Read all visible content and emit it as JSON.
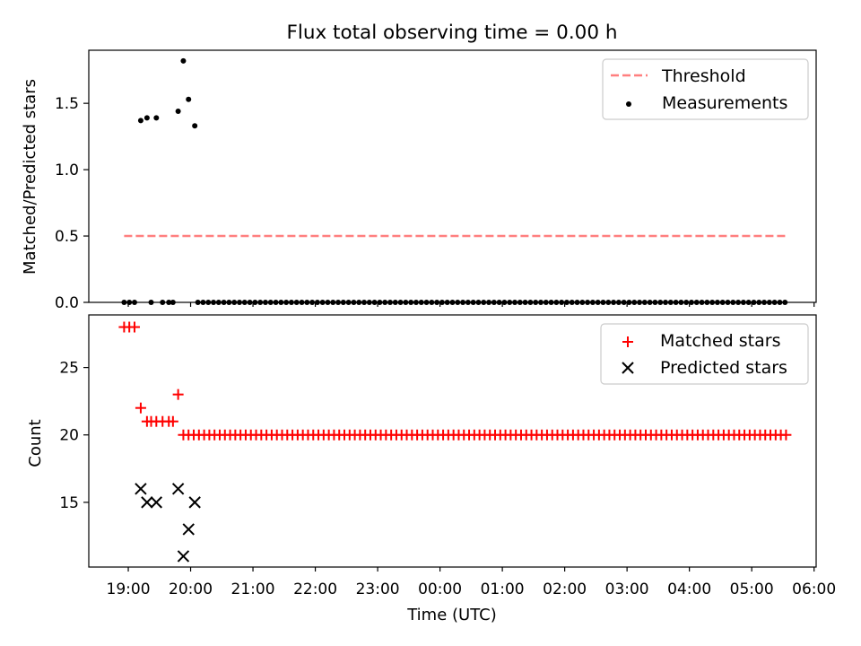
{
  "chart_data": [
    {
      "type": "scatter",
      "title": "Flux total observing time = 0.00 h",
      "ylabel": "Matched/Predicted stars",
      "xlabel": "",
      "ylim": [
        0,
        1.9
      ],
      "yticks": [
        "0.0",
        "0.5",
        "1.0",
        "1.5"
      ],
      "grid": false,
      "legend_position": "top-right",
      "threshold": {
        "name": "Threshold",
        "value": 0.5,
        "x_start": "18:56",
        "x_end": "05:35",
        "color": "#ff7f7f",
        "style": "dashed"
      },
      "series": [
        {
          "name": "Measurements",
          "color": "#000000",
          "marker": "dot",
          "points": [
            [
              "18:56",
              0
            ],
            [
              "19:01",
              0
            ],
            [
              "19:06",
              0
            ],
            [
              "19:12",
              1.37
            ],
            [
              "19:18",
              1.39
            ],
            [
              "19:22",
              0
            ],
            [
              "19:27",
              1.39
            ],
            [
              "19:33",
              0
            ],
            [
              "19:39",
              0
            ],
            [
              "19:43",
              0
            ],
            [
              "19:48",
              1.44
            ],
            [
              "19:53",
              1.82
            ],
            [
              "19:58",
              1.53
            ],
            [
              "20:04",
              1.33
            ],
            {
              "from": "20:07",
              "to": "05:35",
              "step_min": 5,
              "value": 0
            }
          ]
        }
      ]
    },
    {
      "type": "scatter",
      "title": "",
      "ylabel": "Count",
      "xlabel": "Time (UTC)",
      "ylim": [
        10.2,
        28.9
      ],
      "yticks": [
        "15",
        "20",
        "25"
      ],
      "x_range": [
        "18:22",
        "06:02"
      ],
      "xticks": [
        "19:00",
        "20:00",
        "21:00",
        "22:00",
        "23:00",
        "00:00",
        "01:00",
        "02:00",
        "03:00",
        "04:00",
        "05:00",
        "06:00"
      ],
      "grid": false,
      "legend_position": "top-right",
      "series": [
        {
          "name": "Matched stars",
          "color": "#ff0000",
          "marker": "plus",
          "points": [
            [
              "18:56",
              28
            ],
            [
              "19:01",
              28
            ],
            [
              "19:06",
              28
            ],
            [
              "19:12",
              22
            ],
            [
              "19:18",
              21
            ],
            [
              "19:22",
              21
            ],
            [
              "19:27",
              21
            ],
            [
              "19:33",
              21
            ],
            [
              "19:39",
              21
            ],
            [
              "19:43",
              21
            ],
            [
              "19:48",
              23
            ],
            {
              "from": "19:53",
              "to": "05:35",
              "step_min": 5,
              "value": 20
            }
          ]
        },
        {
          "name": "Predicted stars",
          "color": "#000000",
          "marker": "x",
          "points": [
            [
              "19:12",
              16
            ],
            [
              "19:18",
              15
            ],
            [
              "19:27",
              15
            ],
            [
              "19:48",
              16
            ],
            [
              "19:53",
              11
            ],
            [
              "19:58",
              13
            ],
            [
              "20:04",
              15
            ]
          ]
        }
      ]
    }
  ]
}
